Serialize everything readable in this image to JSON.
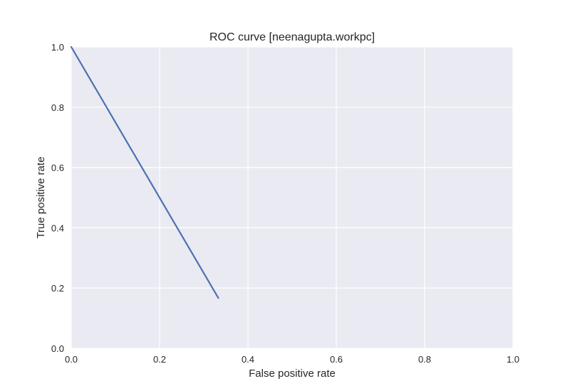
{
  "chart_data": {
    "type": "line",
    "title": "ROC curve [neenagupta.workpc]",
    "xlabel": "False positive rate",
    "ylabel": "True positive rate",
    "xlim": [
      0.0,
      1.0
    ],
    "ylim": [
      0.0,
      1.0
    ],
    "x_ticks": [
      0.0,
      0.2,
      0.4,
      0.6,
      0.8,
      1.0
    ],
    "y_ticks": [
      0.0,
      0.2,
      0.4,
      0.6,
      0.8,
      1.0
    ],
    "x_tick_labels": [
      "0.0",
      "0.2",
      "0.4",
      "0.6",
      "0.8",
      "1.0"
    ],
    "y_tick_labels": [
      "0.0",
      "0.2",
      "0.4",
      "0.6",
      "0.8",
      "1.0"
    ],
    "grid": true,
    "legend": "none",
    "series": [
      {
        "x": [
          0.0,
          0.333
        ],
        "y": [
          1.0,
          0.167
        ],
        "color": "#4c72b0"
      }
    ],
    "colors": {
      "plot_background": "#eaeaf2",
      "grid": "#ffffff",
      "line": "#4c72b0",
      "text": "#262626"
    }
  }
}
